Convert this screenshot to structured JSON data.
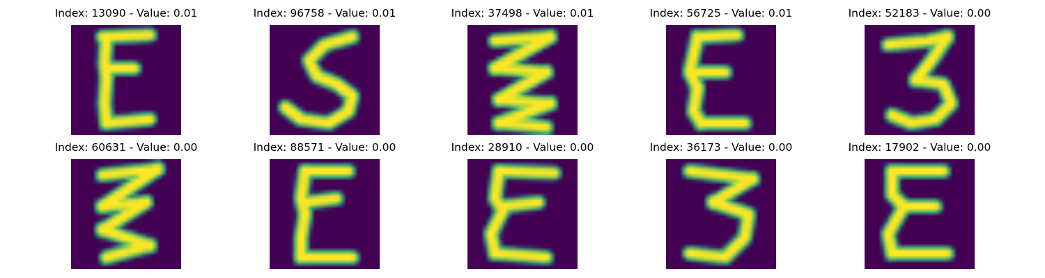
{
  "figure": {
    "colors": {
      "background": "#440154",
      "stroke_edge": "#21918c",
      "stroke_mid": "#5ec962",
      "stroke_core": "#fde725"
    },
    "panels": [
      {
        "title": "Index: 13090 - Value: 0.01",
        "glyph": "E"
      },
      {
        "title": "Index: 96758 - Value: 0.01",
        "glyph": "S"
      },
      {
        "title": "Index: 37498 - Value: 0.01",
        "glyph": "zigzag"
      },
      {
        "title": "Index: 56725 - Value: 0.01",
        "glyph": "E"
      },
      {
        "title": "Index: 52183 - Value: 0.00",
        "glyph": "3"
      },
      {
        "title": "Index: 60631 - Value: 0.00",
        "glyph": "zigzag"
      },
      {
        "title": "Index: 88571 - Value: 0.00",
        "glyph": "E"
      },
      {
        "title": "Index: 28910 - Value: 0.00",
        "glyph": "E"
      },
      {
        "title": "Index: 36173 - Value: 0.00",
        "glyph": "3"
      },
      {
        "title": "Index: 17902 - Value: 0.00",
        "glyph": "E"
      }
    ]
  }
}
